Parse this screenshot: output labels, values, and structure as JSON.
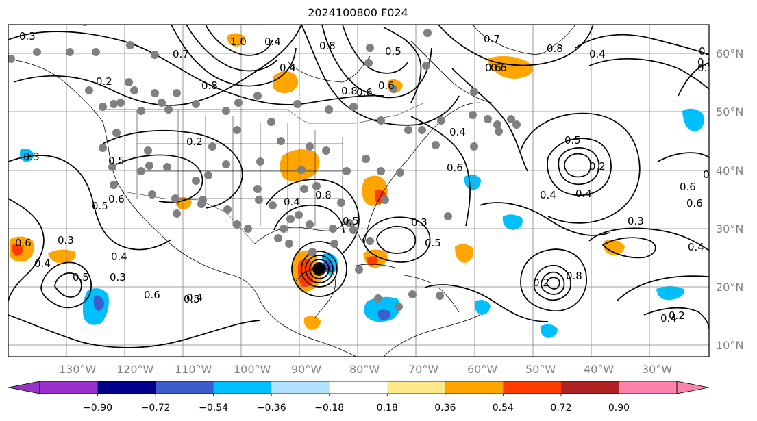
{
  "title": "2024100800 F024",
  "map": {
    "lon_labels": [
      "130°W",
      "120°W",
      "110°W",
      "100°W",
      "90°W",
      "80°W",
      "70°W",
      "60°W",
      "50°W",
      "40°W",
      "30°W"
    ],
    "lat_labels": [
      "60°N",
      "50°N",
      "40°N",
      "30°N",
      "20°N",
      "10°N"
    ],
    "contour_labels": [
      "0.3",
      "0.2",
      "0.7",
      "0.8",
      "1.0",
      "0.4",
      "0.8",
      "0.5",
      "0.6",
      "0.8",
      "0.6",
      "0.4",
      "0.7",
      "0.8",
      "0.6",
      "0.3",
      "0.2",
      "0.4",
      "0.3",
      "0.5",
      "0.6",
      "0.5",
      "0.6",
      "0.4",
      "0.2",
      "0.3",
      "0.4",
      "0.3",
      "0.5",
      "0.6",
      "0.4",
      "0.5",
      "0.4",
      "0.8",
      "0.5",
      "0.3",
      "0.5",
      "0.4",
      "0.2",
      "0.5",
      "0.4",
      "0.3",
      "0.6",
      "0.4",
      "0.6",
      "0.4",
      "0.2",
      "0.8",
      "0.6",
      "0.4",
      "0.3",
      "0.2",
      "0.6",
      "0.4"
    ],
    "colors": {
      "contour": "#000000",
      "station": "#808080",
      "grid": "#808080",
      "coast": "#000000"
    }
  },
  "colorbar": {
    "ticks": [
      "−0.90",
      "−0.72",
      "−0.54",
      "−0.36",
      "−0.18",
      "0.18",
      "0.36",
      "0.54",
      "0.72",
      "0.90"
    ],
    "colors": [
      "#9932cc",
      "#00008b",
      "#3a5fcd",
      "#00bfff",
      "#b0e2ff",
      "#ffffff",
      "#ffe98a",
      "#ffa500",
      "#ff3d00",
      "#b22222",
      "#ff82ab"
    ],
    "under_color": "#9932cc",
    "over_color": "#ff82ab"
  }
}
